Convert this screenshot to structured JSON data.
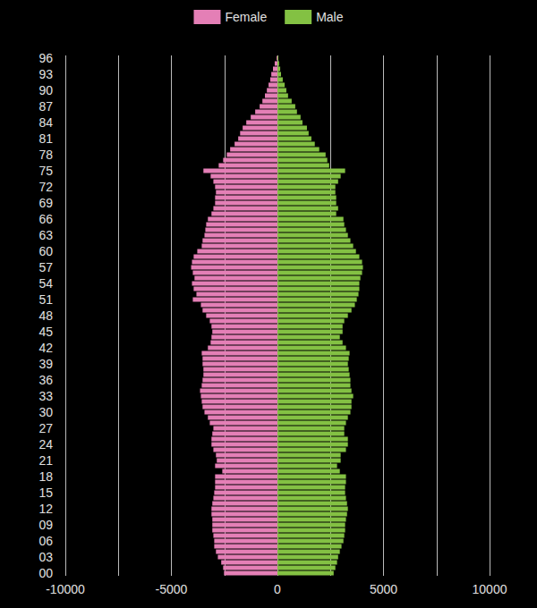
{
  "chart_data": {
    "type": "bar",
    "orientation": "horizontal",
    "grid": true,
    "legend": "top",
    "categories": [
      "00",
      null,
      null,
      "03",
      null,
      null,
      "06",
      null,
      null,
      "09",
      null,
      null,
      "12",
      null,
      null,
      "15",
      null,
      null,
      "18",
      null,
      null,
      "21",
      null,
      null,
      "24",
      null,
      null,
      "27",
      null,
      null,
      "30",
      null,
      null,
      "33",
      null,
      null,
      "36",
      null,
      null,
      "39",
      null,
      null,
      "42",
      null,
      null,
      "45",
      null,
      null,
      "48",
      null,
      null,
      "51",
      null,
      null,
      "54",
      null,
      null,
      "57",
      null,
      null,
      "60",
      null,
      null,
      "63",
      null,
      null,
      "66",
      null,
      null,
      "69",
      null,
      null,
      "72",
      null,
      null,
      "75",
      null,
      null,
      "78",
      null,
      null,
      "81",
      null,
      null,
      "84",
      null,
      null,
      "87",
      null,
      null,
      "90",
      null,
      null,
      "93",
      null,
      null,
      "96"
    ],
    "series": [
      {
        "name": "Female",
        "color": "#e47fb6",
        "values": [
          -2520,
          -2560,
          -2650,
          -2810,
          -2900,
          -2980,
          -2980,
          -3020,
          -3070,
          -3070,
          -3070,
          -3110,
          -3110,
          -3070,
          -3020,
          -2980,
          -2940,
          -2940,
          -2940,
          -2600,
          -2940,
          -2860,
          -2900,
          -3020,
          -3110,
          -3110,
          -3070,
          -3020,
          -3190,
          -3280,
          -3440,
          -3530,
          -3570,
          -3610,
          -3650,
          -3570,
          -3530,
          -3490,
          -3490,
          -3530,
          -3530,
          -3570,
          -3280,
          -3150,
          -3110,
          -3070,
          -3110,
          -3190,
          -3360,
          -3530,
          -3610,
          -3990,
          -3820,
          -3950,
          -4030,
          -3910,
          -3990,
          -4070,
          -4030,
          -3950,
          -3780,
          -3570,
          -3530,
          -3440,
          -3400,
          -3360,
          -3280,
          -3110,
          -3020,
          -2940,
          -2940,
          -2900,
          -2940,
          -3020,
          -3150,
          -3490,
          -2770,
          -2560,
          -2390,
          -2230,
          -2020,
          -1850,
          -1760,
          -1640,
          -1470,
          -1260,
          -1050,
          -840,
          -710,
          -590,
          -500,
          -420,
          -340,
          -290,
          -210,
          -130,
          -40
        ]
      },
      {
        "name": "Male",
        "color": "#83c143",
        "values": [
          2650,
          2730,
          2810,
          2860,
          2940,
          3020,
          3110,
          3150,
          3190,
          3190,
          3230,
          3280,
          3320,
          3280,
          3230,
          3190,
          3190,
          3230,
          3230,
          2940,
          2810,
          2980,
          2980,
          3230,
          3320,
          3320,
          3150,
          3150,
          3230,
          3320,
          3440,
          3490,
          3490,
          3570,
          3490,
          3440,
          3440,
          3400,
          3360,
          3320,
          3360,
          3400,
          3230,
          3070,
          2940,
          3070,
          3070,
          3150,
          3320,
          3490,
          3650,
          3740,
          3820,
          3860,
          3860,
          3910,
          3990,
          4030,
          3990,
          3860,
          3700,
          3570,
          3440,
          3320,
          3230,
          3150,
          3110,
          2770,
          2860,
          2770,
          2770,
          2730,
          2730,
          2860,
          2980,
          3190,
          2440,
          2350,
          2270,
          1970,
          1760,
          1600,
          1470,
          1390,
          1180,
          1090,
          920,
          840,
          670,
          500,
          420,
          340,
          250,
          170,
          130,
          80,
          40
        ]
      }
    ],
    "xlim": [
      -10000,
      10000
    ],
    "xticks": [
      -10000,
      -5000,
      0,
      5000,
      10000
    ]
  }
}
